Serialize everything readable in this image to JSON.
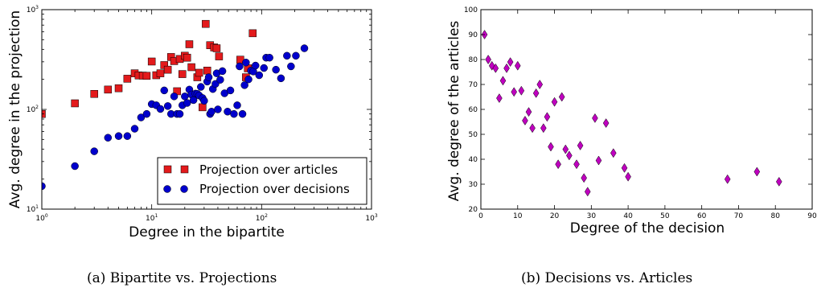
{
  "chart_data": [
    {
      "type": "scatter",
      "xlabel": "Degree in the bipartite",
      "ylabel": "Avg. degree in the projection",
      "xscale": "log",
      "yscale": "log",
      "xlim": [
        1,
        1000
      ],
      "ylim": [
        10,
        1000
      ],
      "x_tick_labels": [
        {
          "value": 1,
          "base": "10",
          "exp": "0"
        },
        {
          "value": 10,
          "base": "10",
          "exp": "1"
        },
        {
          "value": 100,
          "base": "10",
          "exp": "2"
        },
        {
          "value": 1000,
          "base": "10",
          "exp": "3"
        }
      ],
      "y_tick_labels": [
        {
          "value": 10,
          "base": "10",
          "exp": "1"
        },
        {
          "value": 100,
          "base": "10",
          "exp": "2"
        },
        {
          "value": 1000,
          "base": "10",
          "exp": "3"
        }
      ],
      "legend_position": "lower-right",
      "series": [
        {
          "name": "Projection over articles",
          "marker": "square",
          "color": "#e31a1c",
          "points": [
            [
              1,
              90
            ],
            [
              2,
              115
            ],
            [
              3,
              143
            ],
            [
              4,
              158
            ],
            [
              5,
              163
            ],
            [
              6,
              203
            ],
            [
              7,
              230
            ],
            [
              7.6,
              219
            ],
            [
              8.3,
              218
            ],
            [
              9,
              217
            ],
            [
              10,
              302
            ],
            [
              11,
              220
            ],
            [
              12,
              230
            ],
            [
              13,
              278
            ],
            [
              14,
              250
            ],
            [
              15,
              335
            ],
            [
              16,
              305
            ],
            [
              17,
              152
            ],
            [
              18,
              320
            ],
            [
              19,
              226
            ],
            [
              20,
              345
            ],
            [
              21,
              330
            ],
            [
              22,
              450
            ],
            [
              23,
              265
            ],
            [
              25,
              140
            ],
            [
              26,
              210
            ],
            [
              27,
              233
            ],
            [
              29,
              105
            ],
            [
              31,
              720
            ],
            [
              32,
              245
            ],
            [
              34,
              440
            ],
            [
              37,
              418
            ],
            [
              39,
              410
            ],
            [
              41,
              340
            ],
            [
              64,
              315
            ],
            [
              72,
              210
            ],
            [
              75,
              258
            ],
            [
              83,
              580
            ]
          ]
        },
        {
          "name": "Projection over decisions",
          "marker": "circle",
          "color": "#0000cc",
          "points": [
            [
              1,
              17
            ],
            [
              2,
              27
            ],
            [
              3,
              38
            ],
            [
              4,
              52
            ],
            [
              5,
              54
            ],
            [
              6,
              54
            ],
            [
              7,
              64
            ],
            [
              8,
              83
            ],
            [
              9,
              90
            ],
            [
              10,
              113
            ],
            [
              11,
              110
            ],
            [
              12,
              101
            ],
            [
              13,
              155
            ],
            [
              14,
              108
            ],
            [
              15,
              90
            ],
            [
              16,
              135
            ],
            [
              17,
              90
            ],
            [
              18,
              90
            ],
            [
              19,
              110
            ],
            [
              20,
              135
            ],
            [
              21,
              116
            ],
            [
              22,
              158
            ],
            [
              23,
              141
            ],
            [
              24,
              124
            ],
            [
              25,
              144
            ],
            [
              26,
              143
            ],
            [
              27,
              138
            ],
            [
              28,
              168
            ],
            [
              29,
              130
            ],
            [
              30,
              122
            ],
            [
              32,
              190
            ],
            [
              33,
              210
            ],
            [
              34,
              90
            ],
            [
              35,
              95
            ],
            [
              36,
              160
            ],
            [
              38,
              180
            ],
            [
              39,
              230
            ],
            [
              40,
              100
            ],
            [
              42,
              198
            ],
            [
              44,
              242
            ],
            [
              46,
              145
            ],
            [
              49,
              95
            ],
            [
              52,
              155
            ],
            [
              56,
              90
            ],
            [
              60,
              110
            ],
            [
              63,
              270
            ],
            [
              67,
              90
            ],
            [
              70,
              175
            ],
            [
              72,
              295
            ],
            [
              76,
              200
            ],
            [
              80,
              245
            ],
            [
              84,
              240
            ],
            [
              88,
              275
            ],
            [
              95,
              220
            ],
            [
              105,
              260
            ],
            [
              110,
              330
            ],
            [
              118,
              330
            ],
            [
              135,
              250
            ],
            [
              150,
              205
            ],
            [
              170,
              345
            ],
            [
              185,
              270
            ],
            [
              205,
              345
            ],
            [
              245,
              410
            ]
          ]
        }
      ]
    },
    {
      "type": "scatter",
      "xlabel": "Degree of the decision",
      "ylabel": "Avg. degree of the articles",
      "xlim": [
        0,
        90
      ],
      "ylim": [
        20,
        100
      ],
      "x_ticks": [
        0,
        10,
        20,
        30,
        40,
        50,
        60,
        70,
        80,
        90
      ],
      "y_ticks": [
        20,
        30,
        40,
        50,
        60,
        70,
        80,
        90,
        100
      ],
      "series": [
        {
          "marker": "diamond",
          "color": "#bf00bf",
          "points": [
            [
              1,
              90
            ],
            [
              2,
              80
            ],
            [
              3,
              77.5
            ],
            [
              4,
              76.5
            ],
            [
              5,
              64.5
            ],
            [
              6,
              71.5
            ],
            [
              7,
              76.5
            ],
            [
              8,
              79
            ],
            [
              9,
              67
            ],
            [
              10,
              77.5
            ],
            [
              11,
              67.5
            ],
            [
              12,
              55.5
            ],
            [
              13,
              59
            ],
            [
              14,
              52.5
            ],
            [
              15,
              66.5
            ],
            [
              16,
              70
            ],
            [
              17,
              52.5
            ],
            [
              18,
              57
            ],
            [
              19,
              45
            ],
            [
              20,
              63
            ],
            [
              21,
              38
            ],
            [
              22,
              65
            ],
            [
              23,
              44
            ],
            [
              24,
              41.5
            ],
            [
              26,
              38
            ],
            [
              27,
              45.5
            ],
            [
              28,
              32.5
            ],
            [
              29,
              27
            ],
            [
              31,
              56.5
            ],
            [
              32,
              39.5
            ],
            [
              34,
              54.5
            ],
            [
              36,
              42.5
            ],
            [
              39,
              36.5
            ],
            [
              40,
              33
            ],
            [
              67,
              32
            ],
            [
              75,
              35
            ],
            [
              81,
              31
            ]
          ]
        }
      ]
    }
  ],
  "captions": {
    "a": "(a) Bipartite vs. Projections",
    "b": "(b) Decisions vs. Articles"
  }
}
